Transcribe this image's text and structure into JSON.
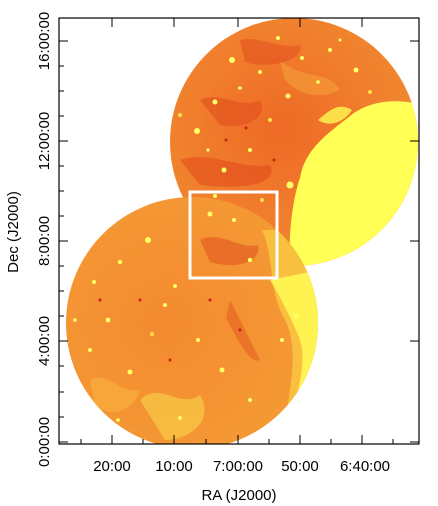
{
  "figure": {
    "x_axis": {
      "label": "RA (J2000)",
      "ticks": [
        "20:00",
        "10:00",
        "7:00:00",
        "50:00",
        "6:40:00"
      ]
    },
    "y_axis": {
      "label": "Dec (J2000)",
      "ticks": [
        "0:00:00",
        "4:00:00",
        "8:00:00",
        "12:00:00",
        "16:00:00"
      ]
    },
    "colors": {
      "background": "#f5862e",
      "emission_bright": "#ffff55",
      "emission_mid": "#f9b43b",
      "emission_dark": "#e2421a",
      "box": "#ffffff",
      "frame": "#000000"
    },
    "regions": [
      "upper-field",
      "lower-field"
    ],
    "inset_box": "highlighted-region"
  }
}
